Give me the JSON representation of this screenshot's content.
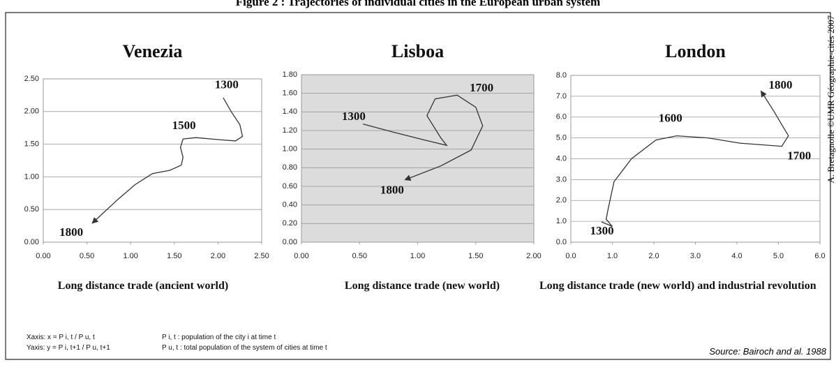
{
  "figure_title": "Figure 2 : Trajectories of individual cities in the European urban system",
  "credit": "A. Bretagnolle ©UMR Géographie-cités 2007",
  "notes": [
    "Xaxis: x = P i, t / P u, t",
    "Yaxis: y = P i, t+1 / P u, t+1",
    "P i, t : population of the city i at time t",
    "P u, t : total population of the system of cities at time t"
  ],
  "source": "Source: Bairoch and al. 1988",
  "chart_data": [
    {
      "type": "line",
      "title": "Venezia",
      "xlabel": "Long distance trade (ancient world)",
      "color": "#333333",
      "background": "#ffffff",
      "grid": true,
      "xlim": [
        0,
        2.5
      ],
      "ylim": [
        0,
        2.5
      ],
      "xticks": [
        {
          "value": 0,
          "label": "0.00"
        },
        {
          "value": 0.5,
          "label": "0.50"
        },
        {
          "value": 1,
          "label": "1.00"
        },
        {
          "value": 1.5,
          "label": "1.50"
        },
        {
          "value": 2,
          "label": "2.00"
        },
        {
          "value": 2.5,
          "label": "2.50"
        }
      ],
      "yticks": [
        {
          "value": 0,
          "label": "0.00"
        },
        {
          "value": 0.5,
          "label": "0.50"
        },
        {
          "value": 1,
          "label": "1.00"
        },
        {
          "value": 1.5,
          "label": "1.50"
        },
        {
          "value": 2,
          "label": "2.00"
        },
        {
          "value": 2.5,
          "label": "2.50"
        }
      ],
      "x": [
        2.06,
        2.15,
        2.25,
        2.28,
        2.2,
        2.0,
        1.75,
        1.6,
        1.57,
        1.6,
        1.58,
        1.45,
        1.25,
        1.05,
        0.85,
        0.56
      ],
      "values": [
        2.21,
        2.0,
        1.8,
        1.62,
        1.55,
        1.57,
        1.6,
        1.58,
        1.45,
        1.3,
        1.18,
        1.1,
        1.05,
        0.88,
        0.65,
        0.29
      ],
      "annotations": [
        {
          "text": "1300",
          "x": 2.1,
          "y": 2.4
        },
        {
          "text": "1500",
          "x": 1.61,
          "y": 1.77
        },
        {
          "text": "1800",
          "x": 0.32,
          "y": 0.14
        }
      ]
    },
    {
      "type": "line",
      "title": "Lisboa",
      "xlabel": "Long distance trade (new world)",
      "color": "#333333",
      "background": "#dcdcdc",
      "grid": true,
      "xlim": [
        0,
        2
      ],
      "ylim": [
        0,
        1.8
      ],
      "xticks": [
        {
          "value": 0,
          "label": "0.00"
        },
        {
          "value": 0.5,
          "label": "0.50"
        },
        {
          "value": 1,
          "label": "1.00"
        },
        {
          "value": 1.5,
          "label": "1.50"
        },
        {
          "value": 2,
          "label": "2.00"
        }
      ],
      "yticks": [
        {
          "value": 0,
          "label": "0.00"
        },
        {
          "value": 0.2,
          "label": "0.20"
        },
        {
          "value": 0.4,
          "label": "0.40"
        },
        {
          "value": 0.6,
          "label": "0.60"
        },
        {
          "value": 0.8,
          "label": "0.80"
        },
        {
          "value": 1,
          "label": "1.00"
        },
        {
          "value": 1.2,
          "label": "1.20"
        },
        {
          "value": 1.4,
          "label": "1.40"
        },
        {
          "value": 1.6,
          "label": "1.60"
        },
        {
          "value": 1.8,
          "label": "1.80"
        }
      ],
      "x": [
        0.53,
        0.8,
        1.05,
        1.25,
        1.2,
        1.08,
        1.15,
        1.34,
        1.5,
        1.56,
        1.46,
        1.2,
        0.89
      ],
      "values": [
        1.27,
        1.18,
        1.1,
        1.04,
        1.12,
        1.36,
        1.54,
        1.58,
        1.45,
        1.25,
        0.99,
        0.82,
        0.67
      ],
      "annotations": [
        {
          "text": "1700",
          "x": 1.55,
          "y": 1.65
        },
        {
          "text": "1300",
          "x": 0.45,
          "y": 1.34
        },
        {
          "text": "1800",
          "x": 0.78,
          "y": 0.55
        }
      ]
    },
    {
      "type": "line",
      "title": "London",
      "xlabel": "Long distance trade (new world) and industrial revolution",
      "color": "#333333",
      "background": "#ffffff",
      "grid": true,
      "xlim": [
        0,
        6
      ],
      "ylim": [
        0,
        8
      ],
      "xticks": [
        {
          "value": 0,
          "label": "0.0"
        },
        {
          "value": 1,
          "label": "1.0"
        },
        {
          "value": 2,
          "label": "2.0"
        },
        {
          "value": 3,
          "label": "3.0"
        },
        {
          "value": 4,
          "label": "4.0"
        },
        {
          "value": 5,
          "label": "5.0"
        },
        {
          "value": 6,
          "label": "6.0"
        }
      ],
      "yticks": [
        {
          "value": 0,
          "label": "0.0"
        },
        {
          "value": 1,
          "label": "1.0"
        },
        {
          "value": 2,
          "label": "2.0"
        },
        {
          "value": 3,
          "label": "3.0"
        },
        {
          "value": 4,
          "label": "4.0"
        },
        {
          "value": 5,
          "label": "5.0"
        },
        {
          "value": 6,
          "label": "6.0"
        },
        {
          "value": 7,
          "label": "7.0"
        },
        {
          "value": 8,
          "label": "8.0"
        }
      ],
      "x": [
        0.74,
        0.95,
        1.0,
        0.85,
        0.9,
        1.04,
        1.46,
        2.05,
        2.55,
        3.3,
        4.07,
        5.08,
        5.24,
        4.9,
        4.58
      ],
      "values": [
        0.97,
        0.8,
        0.75,
        1.1,
        1.6,
        2.9,
        4.0,
        4.9,
        5.1,
        5.0,
        4.75,
        4.6,
        5.1,
        6.25,
        7.25
      ],
      "annotations": [
        {
          "text": "1800",
          "x": 5.05,
          "y": 7.5
        },
        {
          "text": "1600",
          "x": 2.4,
          "y": 5.9
        },
        {
          "text": "1700",
          "x": 5.5,
          "y": 4.1
        },
        {
          "text": "1300",
          "x": 0.75,
          "y": 0.5
        }
      ]
    }
  ]
}
